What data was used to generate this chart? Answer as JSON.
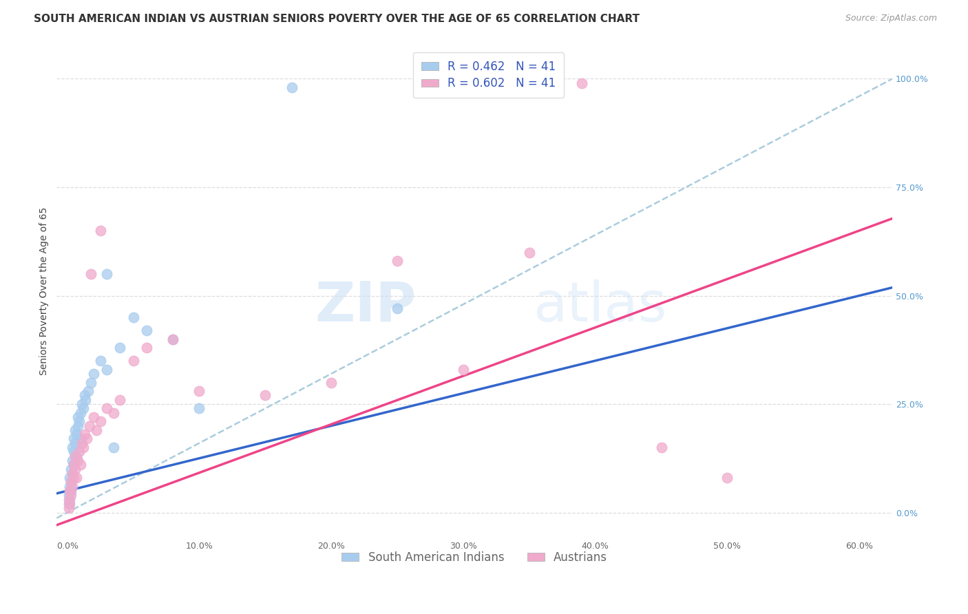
{
  "title": "SOUTH AMERICAN INDIAN VS AUSTRIAN SENIORS POVERTY OVER THE AGE OF 65 CORRELATION CHART",
  "source": "Source: ZipAtlas.com",
  "ylabel_left": "Seniors Poverty Over the Age of 65",
  "xlim": [
    -0.008,
    0.625
  ],
  "ylim": [
    -0.06,
    1.08
  ],
  "R_blue": 0.462,
  "N_blue": 41,
  "R_pink": 0.602,
  "N_pink": 41,
  "blue_color": "#A8CCEE",
  "pink_color": "#F0AACC",
  "blue_line_color": "#3366CC",
  "pink_line_color": "#EE4488",
  "dashed_line_color": "#AACCDD",
  "title_fontsize": 11,
  "source_fontsize": 9,
  "axis_label_fontsize": 10,
  "tick_fontsize": 9,
  "legend_fontsize": 12,
  "blue_line_x0": 0.0,
  "blue_line_y0": 0.05,
  "blue_line_x1": 0.6,
  "blue_line_y1": 0.5,
  "pink_line_x0": 0.0,
  "pink_line_y0": -0.02,
  "pink_line_x1": 0.6,
  "pink_line_y1": 0.65,
  "dash_line_x0": 0.25,
  "dash_line_y0": 0.4,
  "dash_line_x1": 0.6,
  "dash_line_y1": 0.96,
  "blue_x": [
    0.001,
    0.001,
    0.002,
    0.002,
    0.002,
    0.003,
    0.003,
    0.003,
    0.004,
    0.004,
    0.004,
    0.005,
    0.005,
    0.005,
    0.006,
    0.006,
    0.007,
    0.007,
    0.008,
    0.008,
    0.009,
    0.01,
    0.01,
    0.011,
    0.012,
    0.013,
    0.014,
    0.016,
    0.018,
    0.02,
    0.025,
    0.03,
    0.04,
    0.05,
    0.06,
    0.08,
    0.1,
    0.17,
    0.25,
    0.03,
    0.035
  ],
  "blue_y": [
    0.02,
    0.04,
    0.03,
    0.06,
    0.08,
    0.05,
    0.07,
    0.1,
    0.09,
    0.12,
    0.15,
    0.11,
    0.14,
    0.17,
    0.16,
    0.19,
    0.13,
    0.18,
    0.2,
    0.22,
    0.21,
    0.17,
    0.23,
    0.25,
    0.24,
    0.27,
    0.26,
    0.28,
    0.3,
    0.32,
    0.35,
    0.33,
    0.38,
    0.45,
    0.42,
    0.4,
    0.24,
    0.98,
    0.47,
    0.55,
    0.15
  ],
  "pink_x": [
    0.001,
    0.001,
    0.002,
    0.002,
    0.003,
    0.003,
    0.004,
    0.004,
    0.005,
    0.005,
    0.006,
    0.006,
    0.007,
    0.008,
    0.009,
    0.01,
    0.011,
    0.012,
    0.013,
    0.015,
    0.017,
    0.02,
    0.022,
    0.025,
    0.03,
    0.035,
    0.04,
    0.05,
    0.06,
    0.08,
    0.1,
    0.15,
    0.2,
    0.25,
    0.3,
    0.35,
    0.39,
    0.45,
    0.5,
    0.018,
    0.025
  ],
  "pink_y": [
    0.01,
    0.03,
    0.02,
    0.05,
    0.04,
    0.07,
    0.06,
    0.09,
    0.08,
    0.11,
    0.1,
    0.13,
    0.08,
    0.12,
    0.14,
    0.11,
    0.16,
    0.15,
    0.18,
    0.17,
    0.2,
    0.22,
    0.19,
    0.21,
    0.24,
    0.23,
    0.26,
    0.35,
    0.38,
    0.4,
    0.28,
    0.27,
    0.3,
    0.58,
    0.33,
    0.6,
    0.99,
    0.15,
    0.08,
    0.55,
    0.65
  ]
}
